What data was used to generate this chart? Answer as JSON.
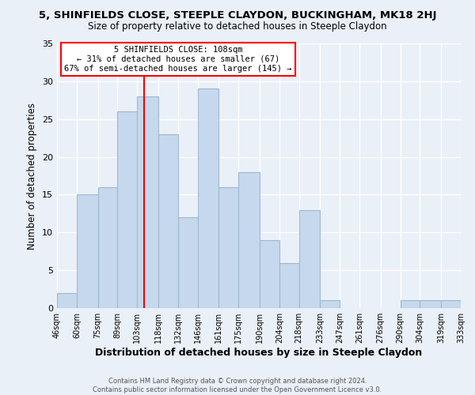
{
  "title": "5, SHINFIELDS CLOSE, STEEPLE CLAYDON, BUCKINGHAM, MK18 2HJ",
  "subtitle": "Size of property relative to detached houses in Steeple Claydon",
  "xlabel": "Distribution of detached houses by size in Steeple Claydon",
  "ylabel": "Number of detached properties",
  "bin_edges": [
    46,
    60,
    75,
    89,
    103,
    118,
    132,
    146,
    161,
    175,
    190,
    204,
    218,
    233,
    247,
    261,
    276,
    290,
    304,
    319,
    333
  ],
  "bar_heights": [
    2,
    15,
    16,
    26,
    28,
    23,
    12,
    29,
    16,
    18,
    9,
    6,
    13,
    1,
    0,
    0,
    0,
    1,
    1,
    1
  ],
  "bar_color": "#c5d8ed",
  "bar_edge_color": "#a0b8d0",
  "vline_x": 108,
  "vline_color": "red",
  "annotation_title": "5 SHINFIELDS CLOSE: 108sqm",
  "annotation_line1": "← 31% of detached houses are smaller (67)",
  "annotation_line2": "67% of semi-detached houses are larger (145) →",
  "annotation_box_color": "white",
  "annotation_box_edge": "red",
  "ylim": [
    0,
    35
  ],
  "yticks": [
    0,
    5,
    10,
    15,
    20,
    25,
    30,
    35
  ],
  "tick_labels": [
    "46sqm",
    "60sqm",
    "75sqm",
    "89sqm",
    "103sqm",
    "118sqm",
    "132sqm",
    "146sqm",
    "161sqm",
    "175sqm",
    "190sqm",
    "204sqm",
    "218sqm",
    "233sqm",
    "247sqm",
    "261sqm",
    "276sqm",
    "290sqm",
    "304sqm",
    "319sqm",
    "333sqm"
  ],
  "footer_line1": "Contains HM Land Registry data © Crown copyright and database right 2024.",
  "footer_line2": "Contains public sector information licensed under the Open Government Licence v3.0.",
  "bg_color": "#eaf0f7",
  "plot_bg_color": "#eaf0f7"
}
